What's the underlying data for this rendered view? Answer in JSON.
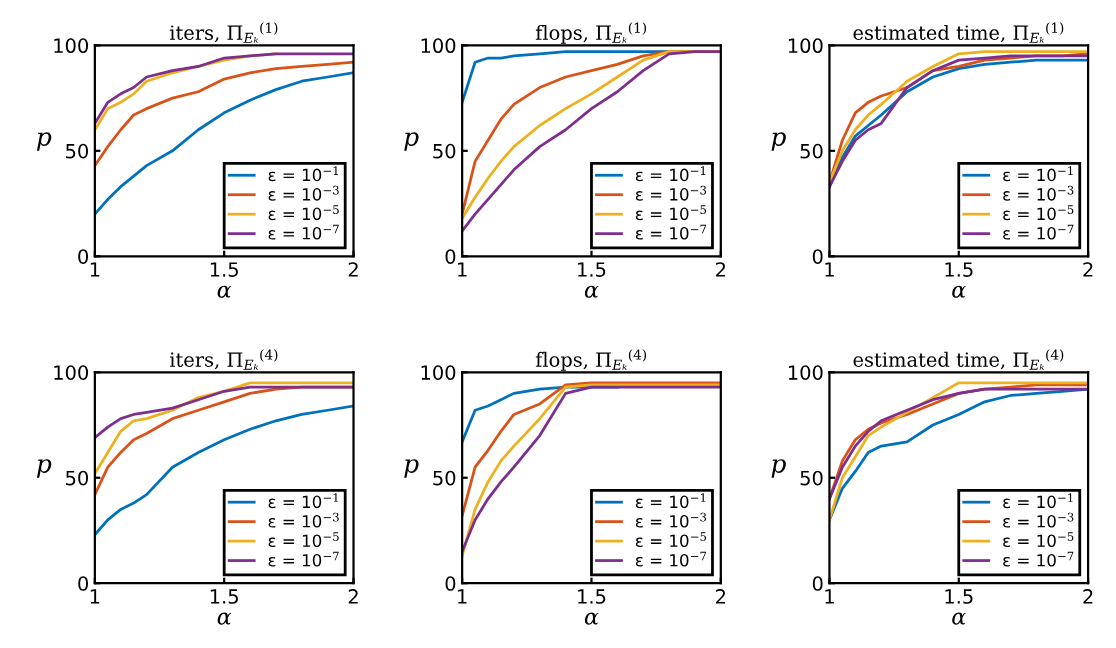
{
  "chart_data": [
    {
      "type": "line",
      "title": "iters, Π$_{Eₖ}$$^{(1)}$",
      "xlabel": "α",
      "ylabel": "p",
      "x": [
        1,
        1.05,
        1.1,
        1.15,
        1.2,
        1.3,
        1.4,
        1.5,
        1.6,
        1.7,
        1.8,
        1.9,
        2
      ],
      "xlim": [
        1,
        2
      ],
      "xticks": [
        1,
        1.5,
        2
      ],
      "ylim": [
        0,
        100
      ],
      "yticks": [
        0,
        50,
        100
      ],
      "legend": "bottom right",
      "grid": false,
      "series": [
        {
          "name": "ε = 10$^{−1}$",
          "color": "#0072bd",
          "values": [
            20,
            27,
            33,
            38,
            43,
            50,
            60,
            68,
            74,
            79,
            83,
            85,
            87
          ]
        },
        {
          "name": "ε = 10$^{−3}$",
          "color": "#d95319",
          "values": [
            43,
            52,
            60,
            67,
            70,
            75,
            78,
            84,
            87,
            89,
            90,
            91,
            92
          ]
        },
        {
          "name": "ε = 10$^{−5}$",
          "color": "#edb120",
          "values": [
            60,
            70,
            73,
            77,
            83,
            87,
            90,
            93,
            95,
            96,
            null,
            null,
            null
          ]
        },
        {
          "name": "ε = 10$^{−7}$",
          "color": "#7e2f8e",
          "values": [
            63,
            73,
            77,
            80,
            85,
            88,
            90,
            94,
            95,
            96,
            96,
            96,
            96
          ]
        }
      ]
    },
    {
      "type": "line",
      "title": "flops, Π$_{Eₖ}$$^{(1)}$",
      "xlabel": "α",
      "ylabel": "p",
      "x": [
        1,
        1.05,
        1.1,
        1.15,
        1.2,
        1.3,
        1.4,
        1.5,
        1.6,
        1.7,
        1.8,
        1.9,
        2
      ],
      "xlim": [
        1,
        2
      ],
      "xticks": [
        1,
        1.5,
        2
      ],
      "ylim": [
        0,
        100
      ],
      "yticks": [
        0,
        50,
        100
      ],
      "legend": "bottom right",
      "grid": false,
      "series": [
        {
          "name": "ε = 10$^{−1}$",
          "color": "#0072bd",
          "values": [
            73,
            92,
            94,
            94,
            95,
            96,
            97,
            97,
            97,
            97,
            97,
            97,
            97
          ]
        },
        {
          "name": "ε = 10$^{−3}$",
          "color": "#d95319",
          "values": [
            20,
            45,
            55,
            65,
            72,
            80,
            85,
            88,
            91,
            95,
            97,
            97,
            97
          ]
        },
        {
          "name": "ε = 10$^{−5}$",
          "color": "#edb120",
          "values": [
            18,
            28,
            37,
            45,
            52,
            62,
            70,
            77,
            85,
            93,
            97,
            97,
            97
          ]
        },
        {
          "name": "ε = 10$^{−7}$",
          "color": "#7e2f8e",
          "values": [
            12,
            20,
            27,
            34,
            41,
            52,
            60,
            70,
            78,
            88,
            96,
            97,
            97
          ]
        }
      ]
    },
    {
      "type": "line",
      "title": "estimated time, Π$_{Eₖ}$$^{(1)}$",
      "xlabel": "α",
      "ylabel": "p",
      "x": [
        1,
        1.05,
        1.1,
        1.15,
        1.2,
        1.3,
        1.4,
        1.5,
        1.6,
        1.7,
        1.8,
        1.9,
        2
      ],
      "xlim": [
        1,
        2
      ],
      "xticks": [
        1,
        1.5,
        2
      ],
      "ylim": [
        0,
        100
      ],
      "yticks": [
        0,
        50,
        100
      ],
      "legend": "bottom right",
      "grid": false,
      "series": [
        {
          "name": "ε = 10$^{−1}$",
          "color": "#0072bd",
          "values": [
            33,
            47,
            57,
            62,
            67,
            78,
            85,
            89,
            91,
            92,
            93,
            93,
            93
          ]
        },
        {
          "name": "ε = 10$^{−3}$",
          "color": "#d95319",
          "values": [
            35,
            55,
            68,
            73,
            76,
            80,
            88,
            90,
            93,
            94,
            95,
            95,
            96
          ]
        },
        {
          "name": "ε = 10$^{−5}$",
          "color": "#edb120",
          "values": [
            35,
            50,
            60,
            67,
            72,
            83,
            90,
            96,
            97,
            97,
            97,
            97,
            97
          ]
        },
        {
          "name": "ε = 10$^{−7}$",
          "color": "#7e2f8e",
          "values": [
            33,
            45,
            55,
            60,
            63,
            80,
            88,
            93,
            94,
            95,
            95,
            95,
            95
          ]
        }
      ]
    },
    {
      "type": "line",
      "title": "iters, Π$_{Eₖ}$$^{(4)}$",
      "xlabel": "α",
      "ylabel": "p",
      "x": [
        1,
        1.05,
        1.1,
        1.15,
        1.2,
        1.3,
        1.4,
        1.5,
        1.6,
        1.7,
        1.8,
        1.9,
        2
      ],
      "xlim": [
        1,
        2
      ],
      "xticks": [
        1,
        1.5,
        2
      ],
      "ylim": [
        0,
        100
      ],
      "yticks": [
        0,
        50,
        100
      ],
      "legend": "bottom right",
      "grid": false,
      "series": [
        {
          "name": "ε = 10$^{−1}$",
          "color": "#0072bd",
          "values": [
            23,
            30,
            35,
            38,
            42,
            55,
            62,
            68,
            73,
            77,
            80,
            82,
            84
          ]
        },
        {
          "name": "ε = 10$^{−3}$",
          "color": "#d95319",
          "values": [
            42,
            55,
            62,
            68,
            71,
            78,
            82,
            86,
            90,
            92,
            93,
            93,
            93
          ]
        },
        {
          "name": "ε = 10$^{−5}$",
          "color": "#edb120",
          "values": [
            52,
            62,
            72,
            77,
            78,
            82,
            88,
            91,
            95,
            95,
            95,
            95,
            95
          ]
        },
        {
          "name": "ε = 10$^{−7}$",
          "color": "#7e2f8e",
          "values": [
            69,
            74,
            78,
            80,
            81,
            83,
            87,
            91,
            93,
            93,
            93,
            93,
            93
          ]
        }
      ]
    },
    {
      "type": "line",
      "title": "flops, Π$_{Eₖ}$$^{(4)}$",
      "xlabel": "α",
      "ylabel": "p",
      "x": [
        1,
        1.05,
        1.1,
        1.15,
        1.2,
        1.3,
        1.4,
        1.5,
        1.6,
        1.7,
        1.8,
        1.9,
        2
      ],
      "xlim": [
        1,
        2
      ],
      "xticks": [
        1,
        1.5,
        2
      ],
      "ylim": [
        0,
        100
      ],
      "yticks": [
        0,
        50,
        100
      ],
      "legend": "bottom right",
      "grid": false,
      "series": [
        {
          "name": "ε = 10$^{−1}$",
          "color": "#0072bd",
          "values": [
            67,
            82,
            84,
            87,
            90,
            92,
            93,
            93,
            93,
            null,
            null,
            null,
            null
          ]
        },
        {
          "name": "ε = 10$^{−3}$",
          "color": "#d95319",
          "values": [
            32,
            55,
            63,
            72,
            80,
            85,
            94,
            95,
            95,
            95,
            95,
            95,
            95
          ]
        },
        {
          "name": "ε = 10$^{−5}$",
          "color": "#edb120",
          "values": [
            13,
            35,
            48,
            58,
            65,
            78,
            93,
            94,
            94,
            94,
            94,
            94,
            94
          ]
        },
        {
          "name": "ε = 10$^{−7}$",
          "color": "#7e2f8e",
          "values": [
            15,
            30,
            40,
            48,
            55,
            70,
            90,
            93,
            93,
            93,
            93,
            93,
            93
          ]
        }
      ]
    },
    {
      "type": "line",
      "title": "estimated time, Π$_{Eₖ}$$^{(4)}$",
      "xlabel": "α",
      "ylabel": "p",
      "x": [
        1,
        1.05,
        1.1,
        1.15,
        1.2,
        1.3,
        1.4,
        1.5,
        1.6,
        1.7,
        1.8,
        1.9,
        2
      ],
      "xlim": [
        1,
        2
      ],
      "xticks": [
        1,
        1.5,
        2
      ],
      "ylim": [
        0,
        100
      ],
      "yticks": [
        0,
        50,
        100
      ],
      "legend": "bottom right",
      "grid": false,
      "series": [
        {
          "name": "ε = 10$^{−1}$",
          "color": "#0072bd",
          "values": [
            30,
            45,
            53,
            62,
            65,
            67,
            75,
            80,
            86,
            89,
            90,
            91,
            92
          ]
        },
        {
          "name": "ε = 10$^{−3}$",
          "color": "#d95319",
          "values": [
            40,
            58,
            68,
            73,
            76,
            80,
            85,
            90,
            92,
            93,
            94,
            94,
            94
          ]
        },
        {
          "name": "ε = 10$^{−5}$",
          "color": "#edb120",
          "values": [
            30,
            50,
            60,
            70,
            74,
            81,
            88,
            95,
            95,
            95,
            95,
            95,
            95
          ]
        },
        {
          "name": "ε = 10$^{−7}$",
          "color": "#7e2f8e",
          "values": [
            40,
            55,
            65,
            72,
            77,
            82,
            87,
            90,
            92,
            92,
            92,
            92,
            92
          ]
        }
      ]
    }
  ]
}
